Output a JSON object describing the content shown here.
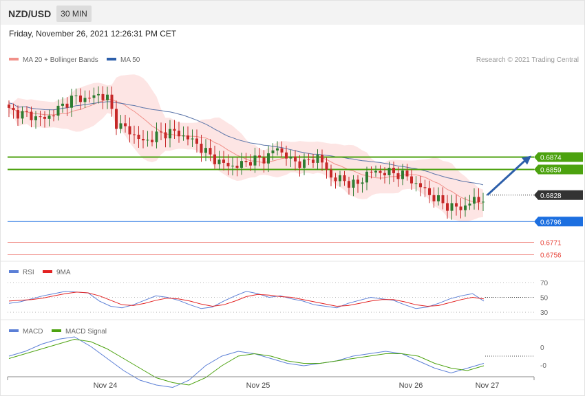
{
  "header": {
    "symbol": "NZD/USD",
    "timeframe": "30 MIN"
  },
  "timestamp": "Friday, November 26, 2021 12:26:31 PM CET",
  "credit": "Research © 2021 Trading Central",
  "colors": {
    "bollinger_fill": "#fde0df",
    "ma20": "#f19089",
    "ma50": "#5a74a8",
    "bull": "#2e7d32",
    "bear": "#c62828",
    "resistance": "#4ca20f",
    "pivot": "#1c6fe0",
    "support": "#e8443a",
    "last": "#333333",
    "rsi": "#5b7fd6",
    "rsi_ma": "#e32222",
    "macd": "#5b7fd6",
    "macd_signal": "#4ca20f",
    "arrow": "#2d5faa"
  },
  "chart_data": [
    {
      "type": "candlestick",
      "title": "",
      "legend": [
        {
          "name": "MA 20 + Bollinger Bands",
          "color": "#f19089"
        },
        {
          "name": "MA 50",
          "color": "#2d5faa"
        }
      ],
      "x_ticks": [
        "Nov 24",
        "Nov 25",
        "Nov 26",
        "Nov 27"
      ],
      "ylim": [
        0.6748,
        0.6985
      ],
      "levels": [
        {
          "value": 0.6874,
          "label": "0.6874",
          "kind": "resistance"
        },
        {
          "value": 0.6859,
          "label": "0.6859",
          "kind": "resistance"
        },
        {
          "value": 0.6828,
          "label": "0.6828",
          "kind": "last"
        },
        {
          "value": 0.6796,
          "label": "0.6796",
          "kind": "pivot"
        },
        {
          "value": 0.6771,
          "label": "0.6771",
          "kind": "support"
        },
        {
          "value": 0.6756,
          "label": "0.6756",
          "kind": "support"
        }
      ],
      "close_path": [
        [
          0,
          0.693
        ],
        [
          4,
          0.6925
        ],
        [
          8,
          0.692
        ],
        [
          11,
          0.6932
        ],
        [
          14,
          0.6945
        ],
        [
          18,
          0.6945
        ],
        [
          20,
          0.695
        ],
        [
          22,
          0.6945
        ],
        [
          24,
          0.6915
        ],
        [
          27,
          0.6905
        ],
        [
          30,
          0.6892
        ],
        [
          33,
          0.69
        ],
        [
          36,
          0.6905
        ],
        [
          39,
          0.69
        ],
        [
          42,
          0.689
        ],
        [
          45,
          0.6875
        ],
        [
          48,
          0.6865
        ],
        [
          51,
          0.6863
        ],
        [
          54,
          0.687
        ],
        [
          57,
          0.6872
        ],
        [
          60,
          0.6885
        ],
        [
          63,
          0.687
        ],
        [
          66,
          0.6866
        ],
        [
          69,
          0.6875
        ],
        [
          72,
          0.685
        ],
        [
          75,
          0.6845
        ],
        [
          78,
          0.684
        ],
        [
          80,
          0.6855
        ],
        [
          84,
          0.6856
        ],
        [
          88,
          0.6853
        ],
        [
          92,
          0.6838
        ],
        [
          95,
          0.6825
        ],
        [
          98,
          0.6815
        ],
        [
          101,
          0.6812
        ],
        [
          104,
          0.6822
        ],
        [
          106,
          0.682
        ]
      ],
      "forecast_arrow": {
        "from": 0.6828,
        "to": 0.6874
      }
    },
    {
      "type": "line",
      "title": "",
      "legend": [
        {
          "name": "RSI",
          "color": "#5b7fd6"
        },
        {
          "name": "9MA",
          "color": "#e32222"
        }
      ],
      "y_ticks": [
        "70",
        "50",
        "30"
      ],
      "ylim": [
        20,
        80
      ],
      "series": [
        {
          "name": "RSI",
          "values": [
            42,
            44,
            48,
            52,
            55,
            58,
            57,
            56,
            45,
            38,
            36,
            40,
            46,
            52,
            50,
            46,
            40,
            35,
            37,
            45,
            52,
            58,
            55,
            50,
            52,
            48,
            45,
            40,
            38,
            36,
            42,
            46,
            50,
            48,
            46,
            40,
            35,
            37,
            42,
            48,
            52,
            55,
            45
          ]
        },
        {
          "name": "9MA",
          "values": [
            45,
            46,
            47,
            49,
            52,
            55,
            57,
            56,
            52,
            46,
            40,
            39,
            42,
            46,
            49,
            48,
            45,
            41,
            38,
            40,
            45,
            51,
            54,
            53,
            51,
            50,
            47,
            44,
            41,
            38,
            39,
            42,
            45,
            47,
            47,
            44,
            40,
            38,
            39,
            43,
            47,
            50,
            48
          ]
        }
      ]
    },
    {
      "type": "line",
      "title": "",
      "legend": [
        {
          "name": "MACD",
          "color": "#5b7fd6"
        },
        {
          "name": "MACD Signal",
          "color": "#4ca20f"
        }
      ],
      "y_ticks": [
        "0",
        "-0"
      ],
      "series": [
        {
          "name": "MACD",
          "values": [
            0.2,
            0.4,
            0.7,
            0.9,
            1.0,
            0.6,
            0.1,
            -0.4,
            -0.8,
            -1.0,
            -1.1,
            -0.8,
            -0.2,
            0.2,
            0.4,
            0.3,
            0.1,
            -0.1,
            -0.2,
            -0.1,
            0.0,
            0.2,
            0.3,
            0.4,
            0.3,
            0.0,
            -0.3,
            -0.5,
            -0.3,
            -0.1
          ]
        },
        {
          "name": "MACD Signal",
          "values": [
            0.1,
            0.3,
            0.5,
            0.7,
            0.9,
            0.8,
            0.5,
            0.1,
            -0.3,
            -0.7,
            -0.9,
            -1.0,
            -0.7,
            -0.2,
            0.2,
            0.3,
            0.2,
            0.0,
            -0.1,
            -0.1,
            0.0,
            0.1,
            0.2,
            0.3,
            0.3,
            0.2,
            -0.1,
            -0.3,
            -0.4,
            -0.2
          ]
        }
      ]
    }
  ]
}
